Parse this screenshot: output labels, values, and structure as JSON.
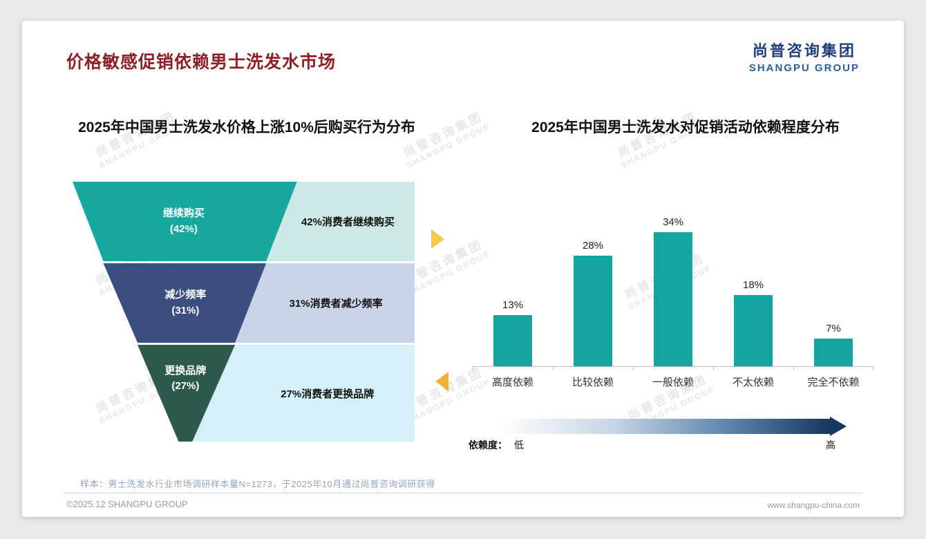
{
  "page": {
    "title": "价格敏感促销依赖男士洗发水市场",
    "logo": {
      "cn": "尚普咨询集团",
      "en": "SHANGPU GROUP"
    },
    "watermark": {
      "cn": "尚普咨询集团",
      "en": "SHANGPU GROUP"
    },
    "footnote": "样本：男士洗发水行业市场调研样本量N=1273，于2025年10月通过尚普咨询调研获得",
    "footer": {
      "left": "©2025.12 SHANGPU GROUP",
      "right": "www.shangpu-china.com"
    }
  },
  "colors": {
    "title_red": "#8d2026",
    "brand_navy": "#1f3e79",
    "teal": "#14a5a0",
    "funnel_teal": "#17a79f",
    "funnel_navy": "#3c4e80",
    "funnel_green": "#2d5a4c",
    "note_light_teal": "#cde9e5",
    "note_light_blue": "#c9d4ea",
    "note_light_cyan": "#d5f0f7",
    "arrow_yellow": "#f5c84c",
    "arrow_orange": "#f0b13a",
    "gradient_dark": "#17375e"
  },
  "chart_data": [
    {
      "type": "funnel",
      "title": "2025年中国男士洗发水价格上涨10%后购买行为分布",
      "categories": [
        "继续购买",
        "减少频率",
        "更换品牌"
      ],
      "values": [
        42,
        31,
        27
      ],
      "value_labels": [
        "(42%)",
        "(31%)",
        "(27%)"
      ],
      "annotations": [
        "42%消费者继续购买",
        "31%消费者减少频率",
        "27%消费者更换品牌"
      ]
    },
    {
      "type": "bar",
      "title": "2025年中国男士洗发水对促销活动依赖程度分布",
      "categories": [
        "高度依赖",
        "比较依赖",
        "一般依赖",
        "不太依赖",
        "完全不依赖"
      ],
      "values": [
        13,
        28,
        34,
        18,
        7
      ],
      "value_labels": [
        "13%",
        "28%",
        "34%",
        "18%",
        "7%"
      ],
      "ylim": [
        0,
        40
      ],
      "grid": false,
      "legend": "none",
      "axis_note": {
        "label": "依赖度：",
        "low": "低",
        "high": "高"
      }
    }
  ]
}
